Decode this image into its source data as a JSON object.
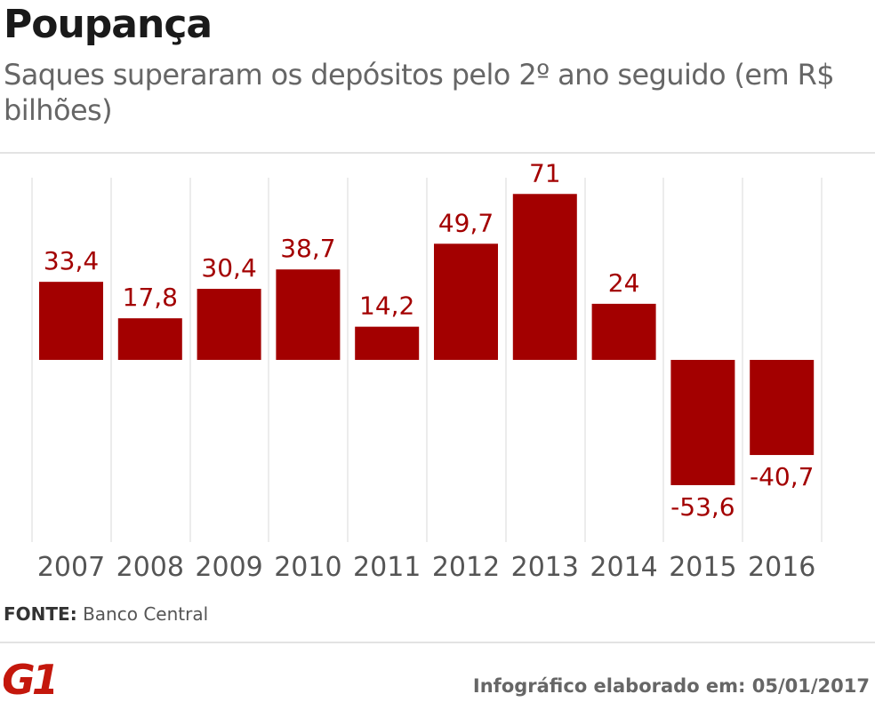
{
  "header": {
    "title": "Poupança",
    "subtitle": "Saques superaram os depósitos pelo 2º ano seguido (em R$ bilhões)"
  },
  "chart_data": {
    "type": "bar",
    "categories": [
      "2007",
      "2008",
      "2009",
      "2010",
      "2011",
      "2012",
      "2013",
      "2014",
      "2015",
      "2016"
    ],
    "values": [
      33.4,
      17.8,
      30.4,
      38.7,
      14.2,
      49.7,
      71,
      24,
      -53.6,
      -40.7
    ],
    "data_labels": [
      "33,4",
      "17,8",
      "30,4",
      "38,7",
      "14,2",
      "49,7",
      "71",
      "24",
      "-53,6",
      "-40,7"
    ],
    "title": "",
    "xlabel": "",
    "ylabel": "",
    "ylim": [
      -80,
      80
    ],
    "grid": false,
    "legend": "none",
    "bar_color": "#a30000"
  },
  "footer": {
    "source_label": "FONTE:",
    "source_value": "Banco Central",
    "logo_text": "G1",
    "logo_color": "#c4170c",
    "credit": "Infográfico elaborado em: 05/01/2017"
  }
}
